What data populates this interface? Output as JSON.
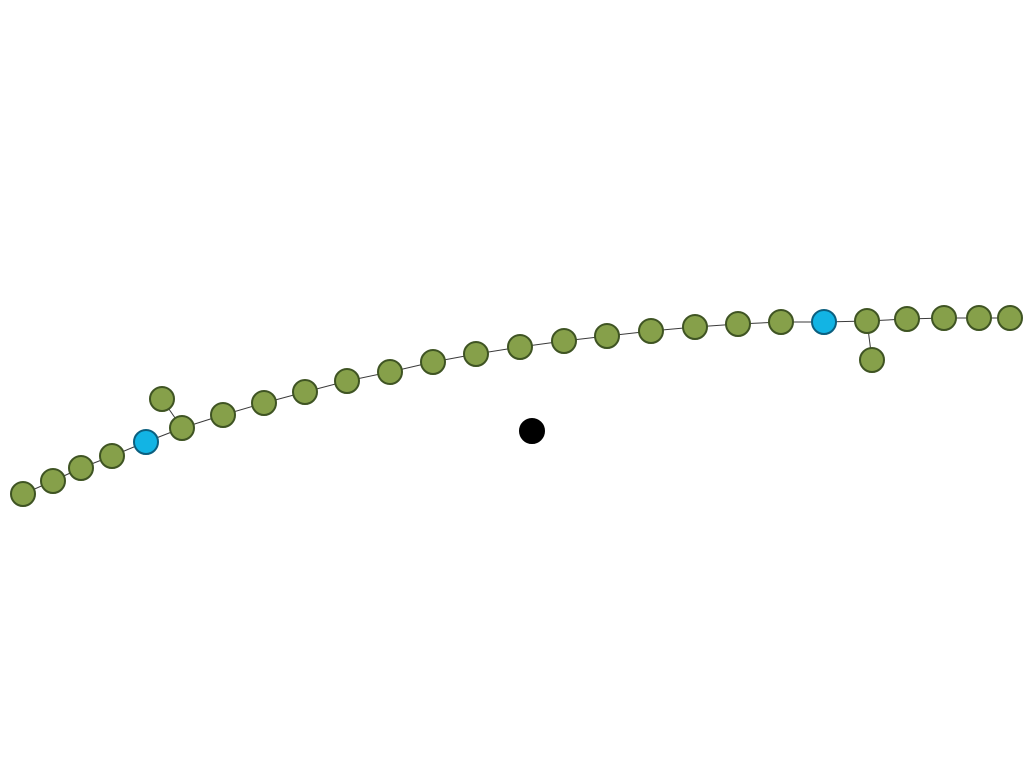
{
  "diagram": {
    "kind": "node-link graph",
    "colors": {
      "background": "#ffffff",
      "edge": "#3a3a3a",
      "node_green_fill": "#86a04a",
      "node_green_stroke": "#3f5423",
      "node_blue_fill": "#12b4e4",
      "node_blue_stroke": "#0b5f7f",
      "node_black_fill": "#000000"
    },
    "nodes": [
      {
        "id": "n01",
        "type": "green"
      },
      {
        "id": "n02",
        "type": "green"
      },
      {
        "id": "n03",
        "type": "green"
      },
      {
        "id": "n04",
        "type": "green"
      },
      {
        "id": "n05",
        "type": "blue"
      },
      {
        "id": "n06",
        "type": "green"
      },
      {
        "id": "n07",
        "type": "green"
      },
      {
        "id": "n08",
        "type": "green"
      },
      {
        "id": "n09",
        "type": "green"
      },
      {
        "id": "n10",
        "type": "green"
      },
      {
        "id": "n11",
        "type": "green"
      },
      {
        "id": "n12",
        "type": "green"
      },
      {
        "id": "n13",
        "type": "green"
      },
      {
        "id": "n14",
        "type": "green"
      },
      {
        "id": "n15",
        "type": "green"
      },
      {
        "id": "n16",
        "type": "green"
      },
      {
        "id": "n17",
        "type": "green"
      },
      {
        "id": "n18",
        "type": "green"
      },
      {
        "id": "n19",
        "type": "green"
      },
      {
        "id": "n20",
        "type": "green"
      },
      {
        "id": "n21",
        "type": "blue"
      },
      {
        "id": "n22",
        "type": "green"
      },
      {
        "id": "n23",
        "type": "green"
      },
      {
        "id": "n24",
        "type": "green"
      },
      {
        "id": "n25",
        "type": "green"
      },
      {
        "id": "n26",
        "type": "green"
      },
      {
        "id": "b1",
        "type": "green"
      },
      {
        "id": "b2",
        "type": "green"
      },
      {
        "id": "iso",
        "type": "black"
      }
    ],
    "edges": [
      [
        "n01",
        "n02"
      ],
      [
        "n02",
        "n03"
      ],
      [
        "n03",
        "n04"
      ],
      [
        "n04",
        "n05"
      ],
      [
        "n05",
        "n06"
      ],
      [
        "n06",
        "n07"
      ],
      [
        "n07",
        "n08"
      ],
      [
        "n08",
        "n09"
      ],
      [
        "n09",
        "n10"
      ],
      [
        "n10",
        "n11"
      ],
      [
        "n11",
        "n12"
      ],
      [
        "n12",
        "n13"
      ],
      [
        "n13",
        "n14"
      ],
      [
        "n14",
        "n15"
      ],
      [
        "n15",
        "n16"
      ],
      [
        "n16",
        "n17"
      ],
      [
        "n17",
        "n18"
      ],
      [
        "n18",
        "n19"
      ],
      [
        "n19",
        "n20"
      ],
      [
        "n20",
        "n21"
      ],
      [
        "n21",
        "n22"
      ],
      [
        "n22",
        "n23"
      ],
      [
        "n23",
        "n24"
      ],
      [
        "n24",
        "n25"
      ],
      [
        "n25",
        "n26"
      ],
      [
        "n06",
        "b1"
      ],
      [
        "n22",
        "b2"
      ]
    ]
  }
}
